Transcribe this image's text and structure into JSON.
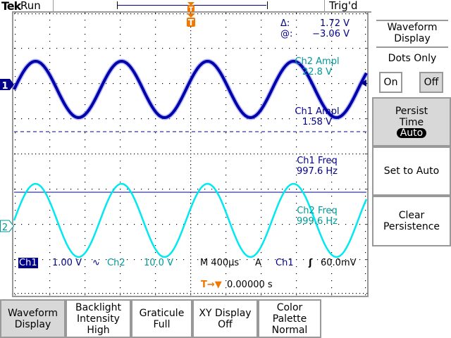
{
  "header": {
    "brand": "Tek",
    "mode": "Run",
    "trigger_status": "Trig'd"
  },
  "colors": {
    "ch1": "#0000aa",
    "ch1_text": "#000088",
    "ch2": "#00e8f0",
    "ch2_text": "#009999",
    "trigger": "#f07800",
    "button_selected": "#d8d8d8"
  },
  "cursor_readout": {
    "delta_label": "Δ:",
    "delta_value": "1.72 V",
    "at_label": "@:",
    "at_value": "−3.06 V"
  },
  "measurements": [
    {
      "label": "Ch2 Ampl",
      "value": "22.8 V"
    },
    {
      "label": "Ch1 Ampl",
      "value": "1.58 V"
    },
    {
      "label": "Ch1 Freq",
      "value": "997.6 Hz"
    },
    {
      "label": "Ch2 Freq",
      "value": "999.6 Hz"
    }
  ],
  "channel_markers": {
    "ch1": "1",
    "ch2": "2",
    "trigger": "T"
  },
  "status": {
    "ch1_label": "Ch1",
    "ch1_scale": "1.00 V",
    "bw_symbol": "∿",
    "ch2_label": "Ch2",
    "ch2_scale": "10.0 V",
    "timebase": "M 400µs",
    "trig_mode": "A",
    "trig_source": "Ch1",
    "trig_slope": "ʃ",
    "trig_level": "60.0mV",
    "trig_offset_icon": "T→▼",
    "trig_offset": "0.00000 s"
  },
  "side_menu": {
    "title": "Waveform Display",
    "dots_only_label": "Dots Only",
    "on_label": "On",
    "off_label": "Off",
    "dots_only_selected": "Off",
    "persist_label": "Persist Time",
    "persist_value": "Auto",
    "set_auto_label": "Set to Auto",
    "clear_label": "Clear Persistence"
  },
  "bottom_menu": [
    {
      "line1": "Waveform",
      "line2": "Display",
      "line3": "",
      "selected": true
    },
    {
      "line1": "Backlight",
      "line2": "Intensity",
      "line3": "High",
      "selected": false
    },
    {
      "line1": "Graticule",
      "line2": "Full",
      "line3": "",
      "selected": false
    },
    {
      "line1": "XY Display",
      "line2": "Off",
      "line3": "",
      "selected": false
    },
    {
      "line1": "Color",
      "line2": "Palette",
      "line3": "Normal",
      "selected": false
    }
  ]
}
